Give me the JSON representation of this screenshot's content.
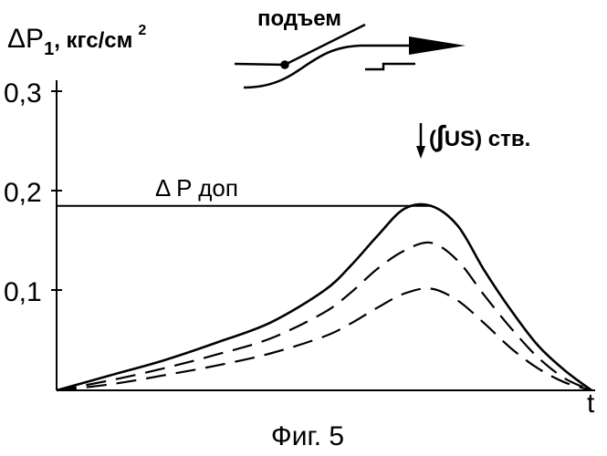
{
  "chart_data": {
    "type": "line",
    "ylabel": {
      "main": "ΔP",
      "subscript": "1",
      "unit": ", кгс/см",
      "superscript": "2"
    },
    "xlabel": "t",
    "yticks": [
      "0,3",
      "0,2",
      "0,1"
    ],
    "ylim": [
      0,
      0.3
    ],
    "xlim": [
      0,
      1
    ],
    "grid": false,
    "limit_label": "Δ P доп",
    "limit_value": 0.185,
    "top_label": "подъем",
    "annotation": "↓(∫US) ств.",
    "caption": "Фиг. 5",
    "series": [
      {
        "style": "solid",
        "x": [
          0,
          0.1,
          0.2,
          0.3,
          0.4,
          0.5,
          0.55,
          0.6,
          0.65,
          0.7,
          0.75,
          0.8,
          0.85,
          0.9,
          0.95,
          1.0
        ],
        "y": [
          0,
          0.015,
          0.03,
          0.048,
          0.068,
          0.1,
          0.125,
          0.155,
          0.182,
          0.185,
          0.165,
          0.12,
          0.08,
          0.045,
          0.02,
          0
        ]
      },
      {
        "style": "dashed",
        "x": [
          0,
          0.1,
          0.2,
          0.3,
          0.4,
          0.5,
          0.55,
          0.6,
          0.65,
          0.7,
          0.75,
          0.8,
          0.85,
          0.9,
          0.95,
          1.0
        ],
        "y": [
          0,
          0.01,
          0.022,
          0.036,
          0.052,
          0.078,
          0.098,
          0.122,
          0.14,
          0.148,
          0.13,
          0.095,
          0.062,
          0.033,
          0.012,
          0
        ]
      },
      {
        "style": "dashed",
        "x": [
          0,
          0.1,
          0.2,
          0.3,
          0.4,
          0.5,
          0.55,
          0.6,
          0.65,
          0.7,
          0.75,
          0.8,
          0.85,
          0.9,
          0.95,
          1.0
        ],
        "y": [
          0,
          0.006,
          0.015,
          0.025,
          0.037,
          0.054,
          0.067,
          0.083,
          0.097,
          0.102,
          0.09,
          0.067,
          0.042,
          0.022,
          0.008,
          0
        ]
      }
    ]
  }
}
